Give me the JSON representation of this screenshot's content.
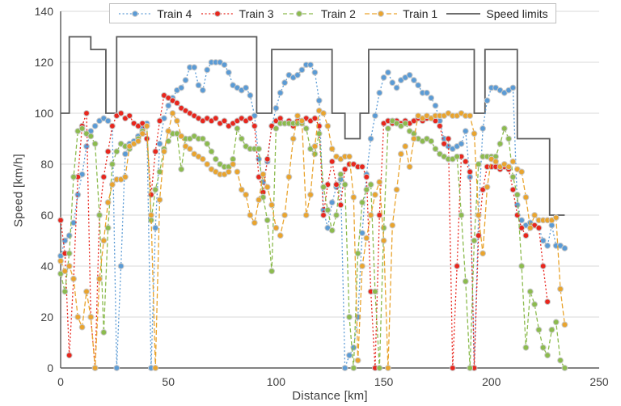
{
  "chart_data": {
    "type": "line",
    "title": "",
    "xlabel": "Distance [km]",
    "ylabel": "Speed [km/h]",
    "xlim": [
      0,
      250
    ],
    "ylim": [
      0,
      140
    ],
    "x_ticks": [
      0,
      50,
      100,
      150,
      200,
      250
    ],
    "y_ticks": [
      0,
      20,
      40,
      60,
      80,
      100,
      120,
      140
    ],
    "grid": "horizontal",
    "legend_position": "top",
    "x_start": 0,
    "x_step": 2,
    "series": [
      {
        "name": "Train 4",
        "color": "#5b9bd5",
        "dash": "2 2.6",
        "marker": "circle",
        "values": [
          44,
          50,
          52,
          57,
          68,
          76,
          87,
          93,
          95,
          97,
          98,
          97,
          95,
          0,
          40,
          84,
          88,
          89,
          91,
          94,
          96,
          0,
          55,
          88,
          98,
          103,
          106,
          109,
          110,
          113,
          118,
          118,
          111,
          109,
          117,
          120,
          120,
          120,
          119,
          116,
          111,
          110,
          109,
          110,
          107,
          99,
          82,
          73,
          81,
          95,
          102,
          108,
          112,
          115,
          114,
          115,
          117,
          119,
          119,
          116,
          105,
          62,
          55,
          65,
          71,
          74,
          0,
          5,
          8,
          20,
          53,
          76,
          90,
          99,
          108,
          114,
          116,
          112,
          110,
          113,
          114,
          115,
          113,
          111,
          108,
          108,
          106,
          103,
          97,
          90,
          87,
          86,
          87,
          88,
          93,
          75,
          0,
          60,
          94,
          105,
          110,
          110,
          109,
          108,
          109,
          110,
          64,
          58,
          56,
          57,
          56,
          55,
          50,
          48,
          56,
          48,
          48,
          47
        ]
      },
      {
        "name": "Train 3",
        "color": "#e8261d",
        "dash": "2 2.6",
        "marker": "circle",
        "values": [
          58,
          45,
          5,
          35,
          75,
          95,
          100,
          20,
          0,
          60,
          75,
          85,
          95,
          99,
          100,
          98,
          99,
          96,
          95,
          96,
          90,
          68,
          85,
          97,
          107,
          106,
          105,
          104,
          102,
          101,
          100,
          99,
          98,
          97,
          98,
          97,
          98,
          96,
          97,
          95,
          96,
          97,
          98,
          97,
          98,
          95,
          75,
          69,
          82,
          95,
          97,
          98,
          96,
          97,
          95,
          97,
          96,
          98,
          97,
          98,
          95,
          60,
          72,
          81,
          72,
          64,
          78,
          80,
          80,
          79,
          79,
          75,
          30,
          0,
          60,
          96,
          97,
          96,
          97,
          96,
          97,
          96,
          97,
          98,
          97,
          98,
          98,
          97,
          95,
          88,
          90,
          0,
          40,
          83,
          81,
          77,
          0,
          52,
          70,
          79,
          79,
          79,
          78,
          79,
          78,
          70,
          60,
          55,
          52,
          55,
          56,
          55,
          40,
          26,
          null,
          null,
          null,
          null
        ]
      },
      {
        "name": "Train 2",
        "color": "#8cbb4e",
        "dash": "5 3",
        "marker": "circle",
        "values": [
          37,
          30,
          45,
          75,
          93,
          94,
          92,
          91,
          88,
          60,
          14,
          55,
          80,
          85,
          88,
          87,
          86,
          88,
          90,
          93,
          95,
          58,
          70,
          77,
          86,
          89,
          92,
          92,
          78,
          90,
          90,
          91,
          90,
          90,
          88,
          85,
          82,
          80,
          79,
          79,
          82,
          94,
          90,
          87,
          86,
          86,
          86,
          67,
          58,
          38,
          94,
          96,
          96,
          96,
          96,
          96,
          96,
          94,
          86,
          84,
          92,
          71,
          62,
          54,
          60,
          76,
          72,
          20,
          0,
          45,
          65,
          70,
          72,
          30,
          0,
          55,
          94,
          97,
          96,
          95,
          96,
          93,
          92,
          90,
          89,
          90,
          89,
          86,
          84,
          83,
          82,
          82,
          83,
          60,
          34,
          0,
          50,
          80,
          83,
          83,
          83,
          83,
          88,
          94,
          90,
          75,
          68,
          40,
          8,
          30,
          25,
          15,
          8,
          5,
          15,
          18,
          3,
          0
        ]
      },
      {
        "name": "Train 1",
        "color": "#e9a42e",
        "dash": "6 3",
        "marker": "circle",
        "values": [
          42,
          38,
          40,
          35,
          20,
          16,
          30,
          20,
          0,
          35,
          50,
          65,
          72,
          74,
          74,
          75,
          87,
          88,
          89,
          92,
          95,
          60,
          0,
          66,
          85,
          93,
          100,
          97,
          91,
          87,
          86,
          84,
          83,
          82,
          80,
          78,
          77,
          76,
          76,
          77,
          80,
          77,
          70,
          68,
          60,
          57,
          66,
          76,
          71,
          64,
          55,
          52,
          60,
          75,
          90,
          99,
          97,
          60,
          68,
          87,
          101,
          100,
          95,
          86,
          83,
          82,
          83,
          83,
          67,
          3,
          40,
          51,
          60,
          68,
          73,
          50,
          0,
          56,
          70,
          84,
          87,
          79,
          90,
          99,
          98,
          99,
          98,
          99,
          99,
          99,
          100,
          99,
          99,
          100,
          99,
          99,
          92,
          60,
          45,
          71,
          82,
          81,
          79,
          80,
          79,
          81,
          78,
          77,
          67,
          55,
          60,
          58,
          58,
          58,
          58,
          59,
          31,
          17
        ]
      }
    ],
    "speed_limits": {
      "name": "Speed limits",
      "color": "#595959",
      "segments": [
        [
          0,
          4,
          100
        ],
        [
          4,
          14,
          130
        ],
        [
          14,
          21,
          125
        ],
        [
          21,
          26,
          100
        ],
        [
          26,
          91,
          130
        ],
        [
          91,
          98,
          100
        ],
        [
          98,
          126,
          125
        ],
        [
          126,
          132,
          100
        ],
        [
          132,
          139,
          90
        ],
        [
          139,
          143,
          100
        ],
        [
          143,
          192,
          125
        ],
        [
          192,
          197,
          100
        ],
        [
          197,
          212,
          125
        ],
        [
          212,
          227,
          90
        ],
        [
          227,
          234,
          60
        ]
      ]
    }
  },
  "styles": {
    "grid_color": "#d9d9d9",
    "axis_color": "#595959",
    "tick_label_color": "#3f3f3f",
    "marker_edge_color": "#c8c8c8"
  }
}
